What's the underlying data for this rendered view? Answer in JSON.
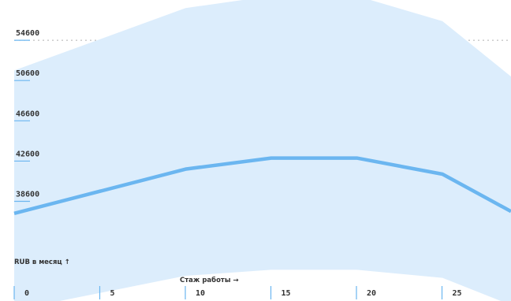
{
  "chart_data": {
    "type": "area",
    "x": [
      0,
      10,
      15,
      20,
      25,
      29
    ],
    "series": [
      {
        "role": "band_upper",
        "values": [
          51600,
          57800,
          59000,
          59000,
          56500,
          51000
        ]
      },
      {
        "role": "median",
        "values": [
          37400,
          41800,
          42900,
          42900,
          41300,
          37600
        ]
      },
      {
        "role": "band_lower",
        "values": [
          27800,
          31200,
          31800,
          31800,
          31000,
          28300
        ]
      }
    ],
    "y_ticks": [
      "38600",
      "42600",
      "46600",
      "50600",
      "54600"
    ],
    "x_ticks": [
      "0",
      "5",
      "10",
      "15",
      "20",
      "25"
    ],
    "xlabel": "Стаж работы →",
    "ylabel": "RUB в месяц ↑",
    "ylim": [
      28700,
      58600
    ],
    "xlim": [
      0,
      29
    ],
    "grid": "horizontal dotted",
    "colors": {
      "band": "#dcedfc",
      "line": "#6bb6f0",
      "grid": "#b0b0b0",
      "tick_mark": "#6bb6f0"
    }
  }
}
